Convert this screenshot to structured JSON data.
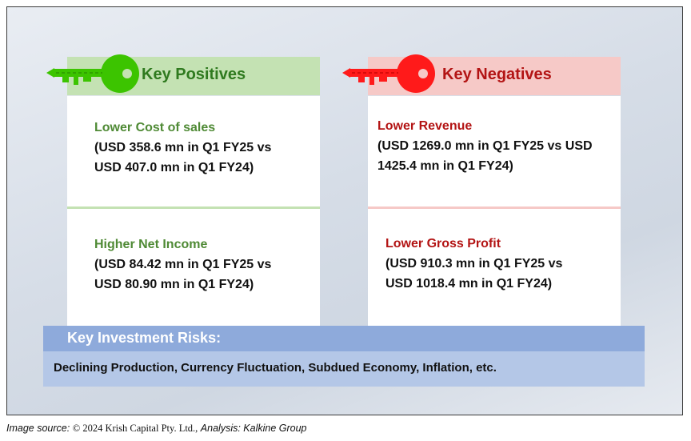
{
  "positives": {
    "title": "Key Positives",
    "items": [
      {
        "title": "Lower Cost of sales",
        "line1": "(USD 358.6 mn in Q1 FY25 vs",
        "line2": "USD 407.0 mn in Q1 FY24)"
      },
      {
        "title": "Higher Net Income",
        "line1": "(USD 84.42 mn in Q1 FY25 vs",
        "line2": "USD 80.90 mn in Q1 FY24)"
      }
    ]
  },
  "negatives": {
    "title": "Key Negatives",
    "items": [
      {
        "title": "Lower Revenue",
        "line1": "(USD 1269.0 mn in Q1 FY25 vs USD",
        "line2": "1425.4 mn in Q1 FY24)"
      },
      {
        "title": "Lower Gross Profit",
        "line1": "(USD 910.3 mn in Q1 FY25 vs",
        "line2": "USD 1018.4 mn in Q1 FY24)"
      }
    ]
  },
  "risks": {
    "title": "Key Investment Risks:",
    "text": "Declining Production, Currency Fluctuation, Subdued Economy, Inflation, etc."
  },
  "source": {
    "label": "Image source:",
    "copyright": "© 2024 Krish Capital Pty. Ltd.,",
    "analysis": "Analysis: Kalkine Group"
  },
  "colors": {
    "positive_accent": "#2f7a1f",
    "positive_key": "#39c400",
    "negative_accent": "#b31414",
    "negative_key": "#ff1a1a",
    "risk_header": "#8eaadb",
    "risk_body": "#b4c7e7"
  },
  "icons": {
    "positive": "green-key-icon",
    "negative": "red-key-icon"
  }
}
